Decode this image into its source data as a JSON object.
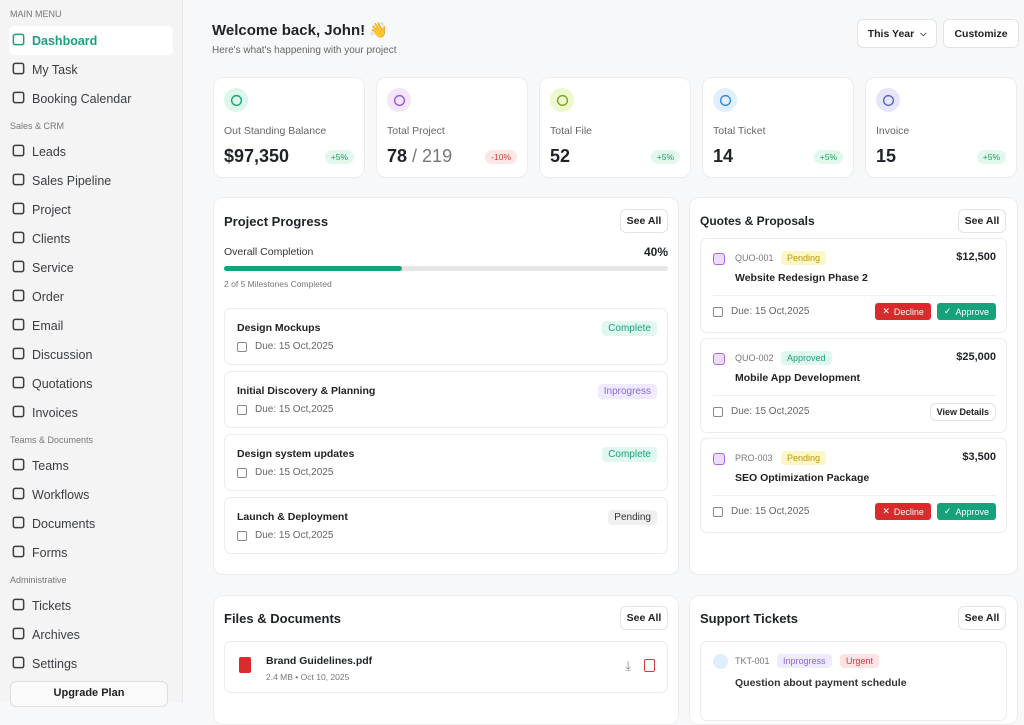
{
  "sidebar": {
    "sections": [
      {
        "title": "MAIN MENU",
        "items": [
          {
            "label": "Dashboard",
            "icon": "grid-icon",
            "active": true
          },
          {
            "label": "My Task",
            "icon": "clipboard-icon"
          },
          {
            "label": "Booking Calendar",
            "icon": "calendar-icon"
          }
        ]
      },
      {
        "title": "Sales & CRM",
        "items": [
          {
            "label": "Leads",
            "icon": "users-icon"
          },
          {
            "label": "Sales Pipeline",
            "icon": "funnel-icon"
          },
          {
            "label": "Project",
            "icon": "folder-icon"
          },
          {
            "label": "Clients",
            "icon": "contact-icon"
          },
          {
            "label": "Service",
            "icon": "service-icon"
          },
          {
            "label": "Order",
            "icon": "box-icon"
          },
          {
            "label": "Email",
            "icon": "mail-icon"
          },
          {
            "label": "Discussion",
            "icon": "chat-icon"
          },
          {
            "label": "Quotations",
            "icon": "quote-icon"
          },
          {
            "label": "Invoices",
            "icon": "invoice-icon"
          }
        ]
      },
      {
        "title": "Teams & Documents",
        "items": [
          {
            "label": "Teams",
            "icon": "team-icon"
          },
          {
            "label": "Workflows",
            "icon": "workflow-icon"
          },
          {
            "label": "Documents",
            "icon": "document-icon"
          },
          {
            "label": "Forms",
            "icon": "form-icon"
          }
        ]
      },
      {
        "title": "Administrative",
        "items": [
          {
            "label": "Tickets",
            "icon": "ticket-icon"
          },
          {
            "label": "Archives",
            "icon": "archive-icon"
          },
          {
            "label": "Settings",
            "icon": "gear-icon"
          }
        ]
      }
    ],
    "upgrade": "Upgrade Plan"
  },
  "header": {
    "title": "Welcome back, John! 👋",
    "subtitle": "Here's what's happening with your project",
    "period": "This Year",
    "customize": "Customize"
  },
  "stats": [
    {
      "label": "Out Standing Balance",
      "value": "$97,350",
      "extra": "",
      "change": "+5%",
      "trend": "up",
      "color": "#16a37b",
      "bg": "#dcf6ea",
      "icon": "dollar-icon"
    },
    {
      "label": "Total Project",
      "value": "78",
      "extra": "/ 219",
      "change": "-10%",
      "trend": "down",
      "color": "#9a55d6",
      "bg": "#f2e6fb",
      "icon": "folder-icon"
    },
    {
      "label": "Total File",
      "value": "52",
      "extra": "",
      "change": "+5%",
      "trend": "up",
      "color": "#7ea31c",
      "bg": "#eef8cf",
      "icon": "file-icon"
    },
    {
      "label": "Total Ticket",
      "value": "14",
      "extra": "",
      "change": "+5%",
      "trend": "up",
      "color": "#3b86c9",
      "bg": "#e0effb",
      "icon": "ticket-icon"
    },
    {
      "label": "Invoice",
      "value": "15",
      "extra": "",
      "change": "+5%",
      "trend": "up",
      "color": "#5b5fc7",
      "bg": "#e6e6f9",
      "icon": "clipboard-icon"
    }
  ],
  "progress": {
    "title": "Project Progress",
    "see_all": "See All",
    "overall_label": "Overall Completion",
    "percent_label": "40%",
    "percent": 40,
    "milestones_text": "2 of 5 Milestones Completed",
    "milestones": [
      {
        "title": "Design Mockups",
        "due": "Due: 15 Oct,2025",
        "status": "Complete"
      },
      {
        "title": "Initial Discovery & Planning",
        "due": "Due: 15 Oct,2025",
        "status": "Inprogress"
      },
      {
        "title": "Design system updates",
        "due": "Due: 15 Oct,2025",
        "status": "Complete"
      },
      {
        "title": "Launch & Deployment",
        "due": "Due: 15 Oct,2025",
        "status": "Pending"
      }
    ]
  },
  "quotes": {
    "title": "Quotes & Proposals",
    "see_all": "See All",
    "decline": "Decline",
    "approve": "Approve",
    "view_details": "View Details",
    "items": [
      {
        "id": "QUO-001",
        "status": "Pending",
        "amount": "$12,500",
        "name": "Website Redesign Phase 2",
        "due": "Due: 15 Oct,2025"
      },
      {
        "id": "QUO-002",
        "status": "Approved",
        "amount": "$25,000",
        "name": "Mobile App Development",
        "due": "Due: 15 Oct,2025"
      },
      {
        "id": "PRO-003",
        "status": "Pending",
        "amount": "$3,500",
        "name": "SEO Optimization Package",
        "due": "Due: 15 Oct,2025"
      }
    ]
  },
  "files": {
    "title": "Files & Documents",
    "see_all": "See All",
    "items": [
      {
        "name": "Brand Guidelines.pdf",
        "meta": "2.4 MB • Oct 10, 2025"
      }
    ]
  },
  "tickets": {
    "title": "Support Tickets",
    "see_all": "See All",
    "items": [
      {
        "id": "TKT-001",
        "status": "Inprogress",
        "priority": "Urgent",
        "subject": "Question about payment schedule"
      }
    ]
  }
}
